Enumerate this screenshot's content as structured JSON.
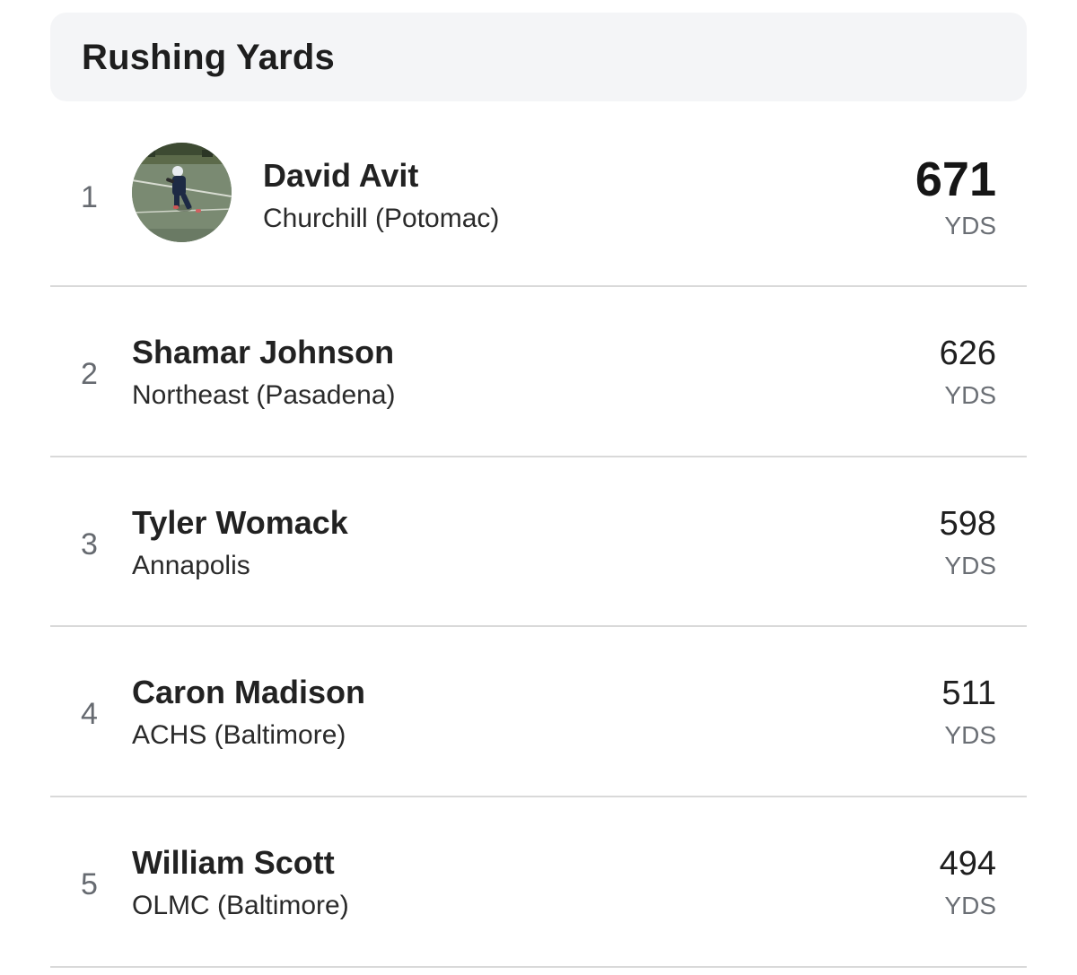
{
  "leaderboard": {
    "title": "Rushing Yards",
    "rows": [
      {
        "rank": "1",
        "name": "David Avit",
        "team": "Churchill (Potomac)",
        "value": "671",
        "unit": "YDS"
      },
      {
        "rank": "2",
        "name": "Shamar Johnson",
        "team": "Northeast (Pasadena)",
        "value": "626",
        "unit": "YDS"
      },
      {
        "rank": "3",
        "name": "Tyler Womack",
        "team": "Annapolis",
        "value": "598",
        "unit": "YDS"
      },
      {
        "rank": "4",
        "name": "Caron Madison",
        "team": "ACHS (Baltimore)",
        "value": "511",
        "unit": "YDS"
      },
      {
        "rank": "5",
        "name": "William Scott",
        "team": "OLMC (Baltimore)",
        "value": "494",
        "unit": "YDS"
      }
    ]
  },
  "icons": {
    "avatar": "player-photo-avatar"
  }
}
